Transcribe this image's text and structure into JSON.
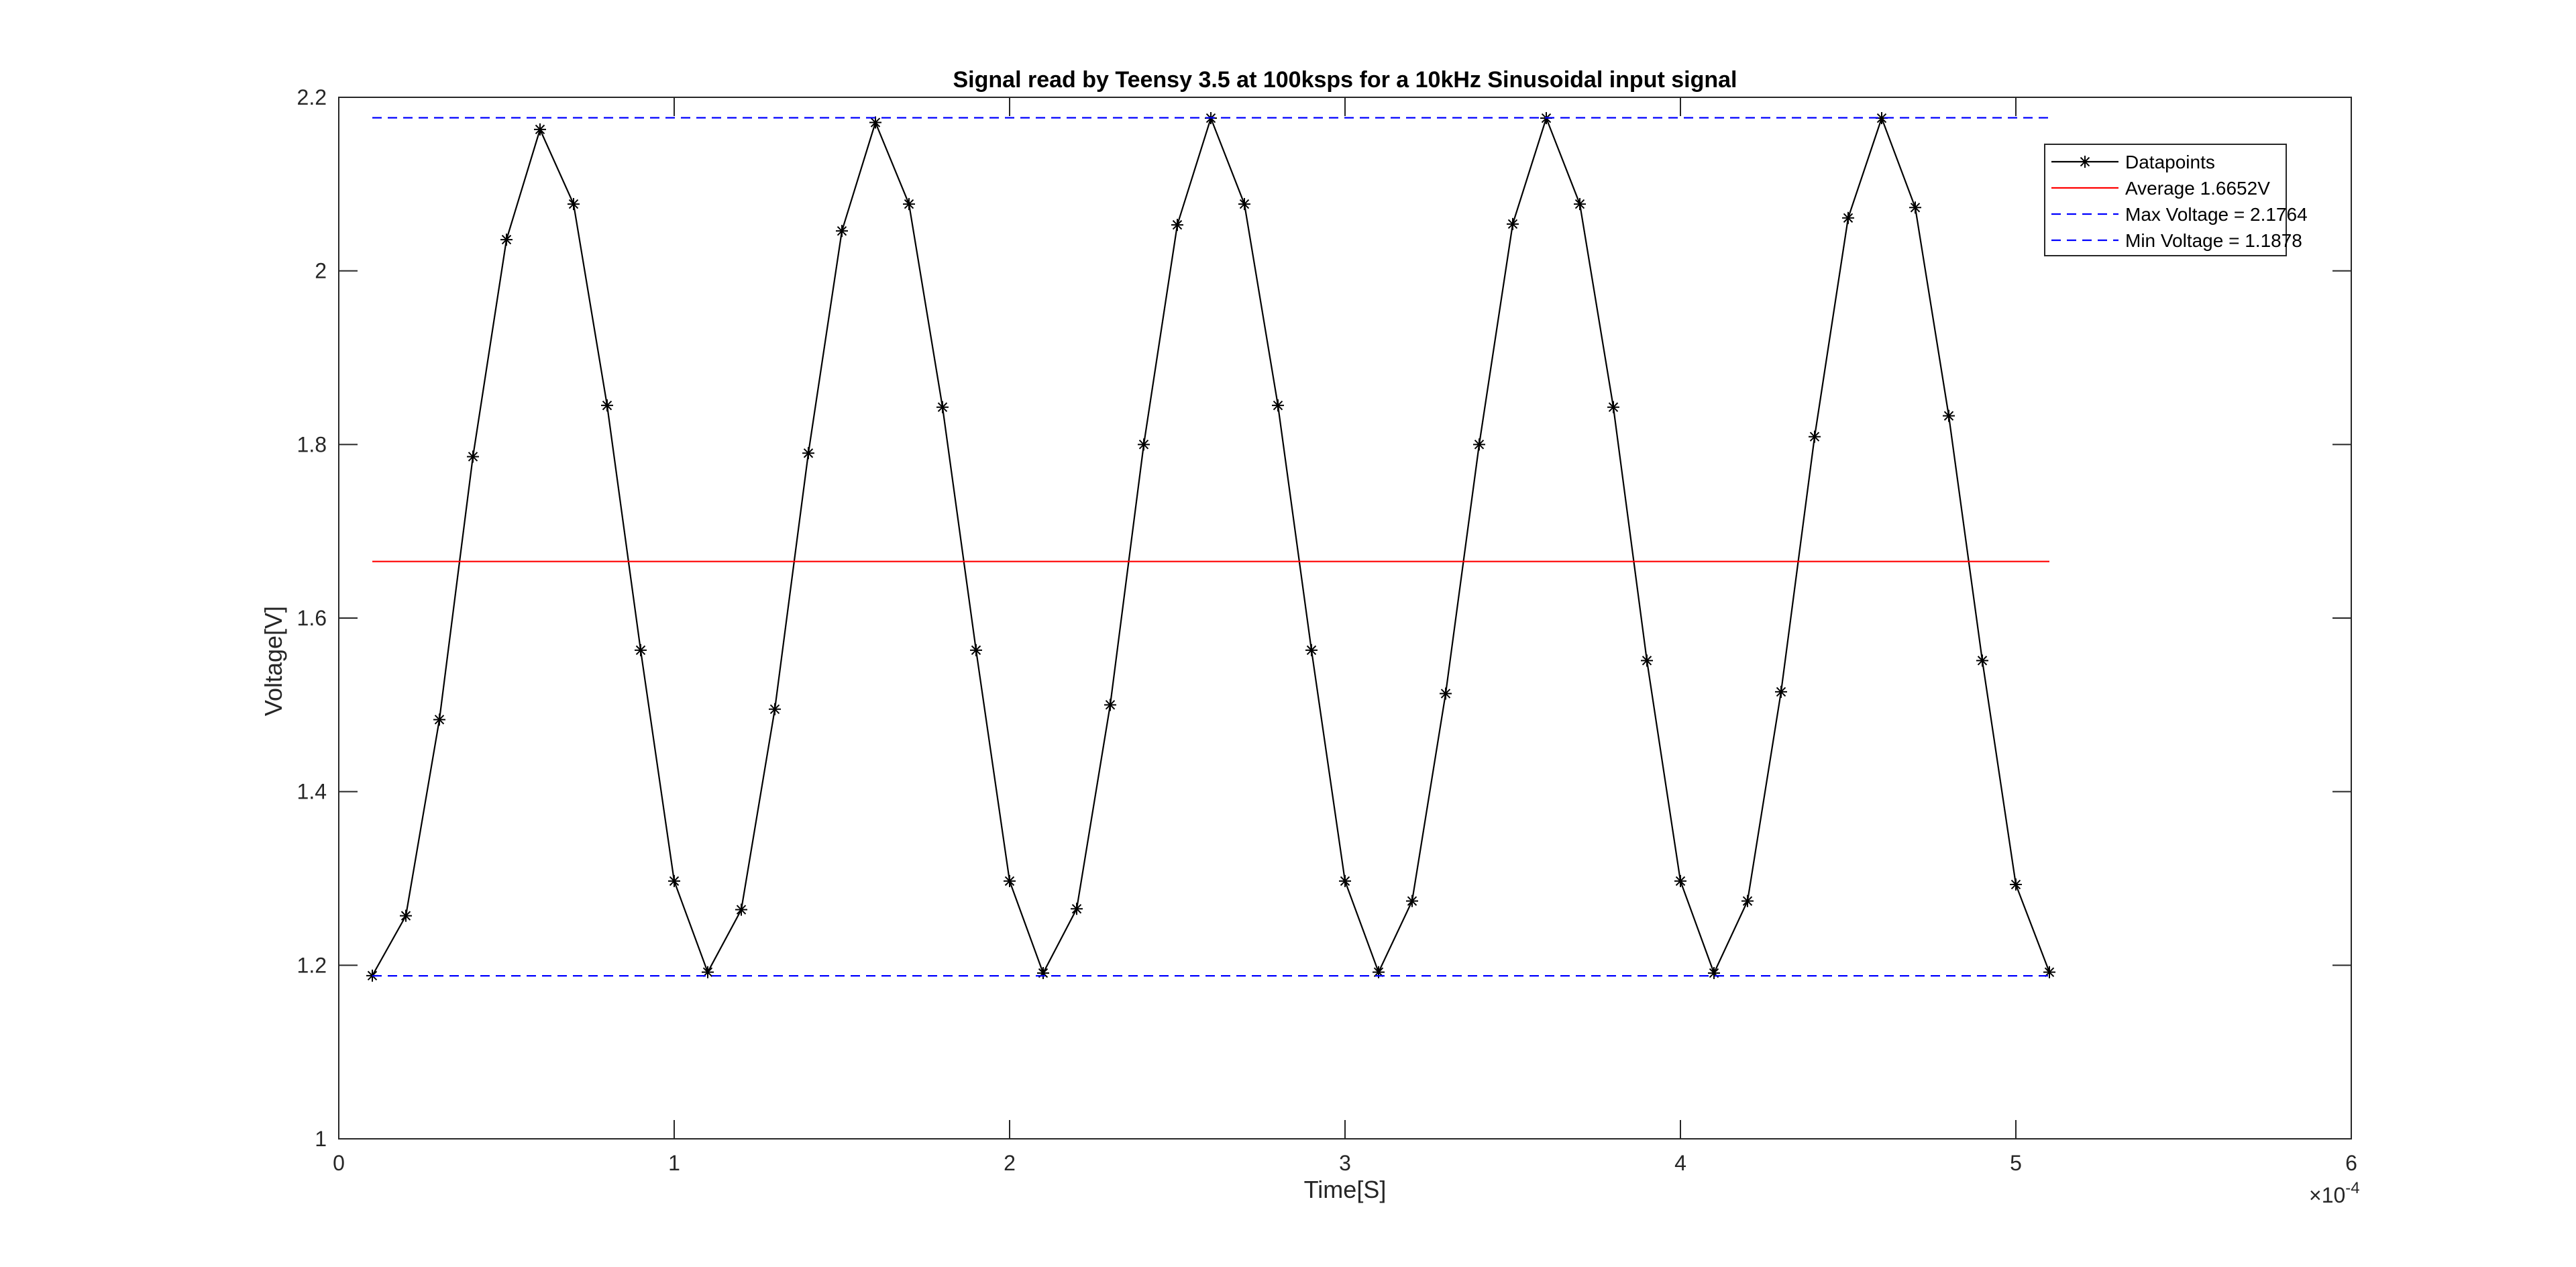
{
  "chart_data": {
    "type": "line",
    "title": "Signal read by Teensy 3.5 at 100ksps for a 10kHz Sinusoidal input signal",
    "xlabel": "Time[S]",
    "ylabel": "Voltage[V]",
    "x_exponent_label": "×10",
    "x_exponent_power": "-4",
    "xlim": [
      0,
      6
    ],
    "ylim": [
      1,
      2.2
    ],
    "x_ticks": [
      0,
      1,
      2,
      3,
      4,
      5,
      6
    ],
    "y_ticks": [
      1,
      1.2,
      1.4,
      1.6,
      1.8,
      2,
      2.2
    ],
    "x_tick_labels": [
      "0",
      "1",
      "2",
      "3",
      "4",
      "5",
      "6"
    ],
    "y_tick_labels": [
      "1",
      "1.2",
      "1.4",
      "1.6",
      "1.8",
      "2",
      "2.2"
    ],
    "grid": false,
    "legend_position": "top-right",
    "series": [
      {
        "name": "Datapoints",
        "color": "#000000",
        "style": "solid",
        "marker": "asterisk",
        "x": [
          0.1,
          0.2,
          0.3,
          0.4,
          0.5,
          0.6,
          0.7,
          0.8,
          0.9,
          1.0,
          1.1,
          1.2,
          1.3,
          1.4,
          1.5,
          1.6,
          1.7,
          1.8,
          1.9,
          2.0,
          2.1,
          2.2,
          2.3,
          2.4,
          2.5,
          2.6,
          2.7,
          2.8,
          2.9,
          3.0,
          3.1,
          3.2,
          3.3,
          3.4,
          3.5,
          3.6,
          3.7,
          3.8,
          3.9,
          4.0,
          4.1,
          4.2,
          4.3,
          4.4,
          4.5,
          4.6,
          4.7,
          4.8,
          4.9,
          5.0,
          5.1
        ],
        "y": [
          1.188,
          1.257,
          1.483,
          1.786,
          2.036,
          2.163,
          2.077,
          1.845,
          1.563,
          1.297,
          1.192,
          1.264,
          1.495,
          1.79,
          2.046,
          2.171,
          2.077,
          1.843,
          1.563,
          1.297,
          1.191,
          1.265,
          1.5,
          1.8,
          2.053,
          2.176,
          2.077,
          1.845,
          1.563,
          1.297,
          1.192,
          1.274,
          1.513,
          1.8,
          2.054,
          2.176,
          2.077,
          1.843,
          1.551,
          1.297,
          1.191,
          1.274,
          1.515,
          1.809,
          2.061,
          2.176,
          2.073,
          1.833,
          1.551,
          1.293,
          1.192
        ]
      },
      {
        "name": "Average 1.6652V",
        "color": "#ff0000",
        "style": "solid",
        "x": [
          0.1,
          5.1
        ],
        "y": [
          1.6652,
          1.6652
        ]
      },
      {
        "name": "Max Voltage = 2.1764",
        "color": "#0000ff",
        "style": "dashed",
        "x": [
          0.1,
          5.1
        ],
        "y": [
          2.1764,
          2.1764
        ]
      },
      {
        "name": "Min Voltage = 1.1878",
        "color": "#0000ff",
        "style": "dashed",
        "x": [
          0.1,
          5.1
        ],
        "y": [
          1.1878,
          1.1878
        ]
      }
    ]
  }
}
